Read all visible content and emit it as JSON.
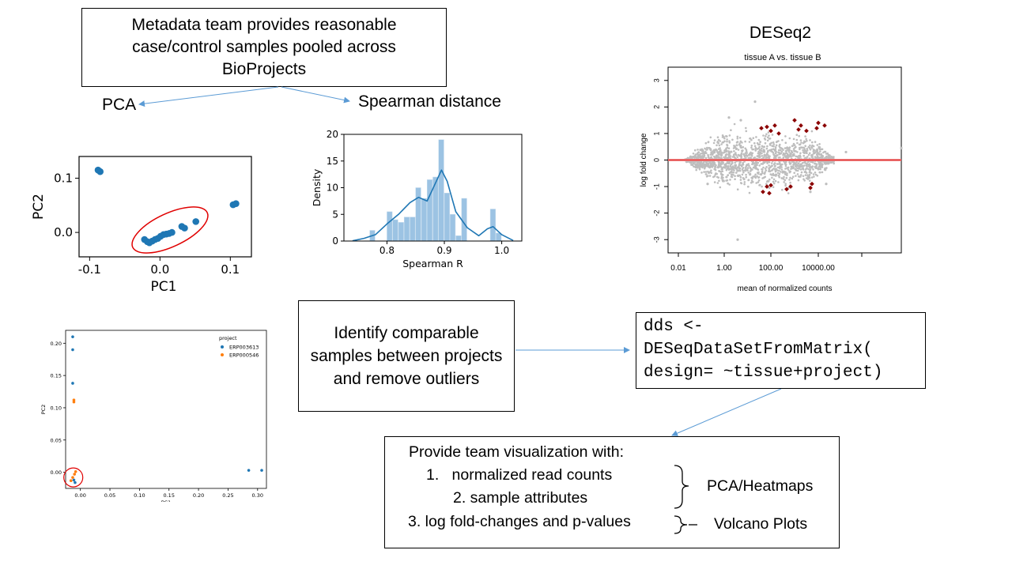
{
  "metadata_box": {
    "lines": [
      "Metadata team provides reasonable",
      "case/control samples pooled across",
      "BioProjects"
    ]
  },
  "pca_label": "PCA",
  "spearman_label": "Spearman distance",
  "deseq": {
    "title": "DESeq2",
    "subtitle": "tissue A vs. tissue B"
  },
  "identify_box": {
    "lines": [
      "Identify comparable",
      "samples between projects",
      "and remove outliers"
    ]
  },
  "code_box": {
    "lines": [
      "dds <-",
      "DESeqDataSetFromMatrix(",
      "design= ~tissue+project)"
    ]
  },
  "provide_box": {
    "title": "Provide team visualization with:",
    "item1": "1.   normalized read counts",
    "item2": "2. sample attributes",
    "item3": "3. log fold-changes and p-values",
    "label_pca": "PCA/Heatmaps",
    "label_volcano": "Volcano Plots"
  },
  "colors": {
    "blue": "#1f77b4",
    "orange": "#ff7f0e",
    "hist": "#9cc3e3",
    "red": "#d62728",
    "arrow": "#5b9bd5",
    "ma_grey": "#bdbdbd",
    "ma_sig": "#8b0000",
    "ma_line": "#f08080"
  },
  "chart_data": [
    {
      "type": "scatter",
      "xlabel": "PC1",
      "ylabel": "PC2",
      "xlim": [
        -0.115,
        0.13
      ],
      "ylim": [
        -0.045,
        0.14
      ],
      "xticks": [
        "-0.1",
        "0.0",
        "0.1"
      ],
      "yticks": [
        "0.0",
        "0.1"
      ],
      "points": [
        {
          "x": -0.088,
          "y": 0.115
        },
        {
          "x": -0.085,
          "y": 0.112
        },
        {
          "x": -0.022,
          "y": -0.013
        },
        {
          "x": -0.018,
          "y": -0.017
        },
        {
          "x": -0.015,
          "y": -0.019
        },
        {
          "x": -0.011,
          "y": -0.016
        },
        {
          "x": -0.007,
          "y": -0.013
        },
        {
          "x": -0.003,
          "y": -0.011
        },
        {
          "x": 0.001,
          "y": -0.007
        },
        {
          "x": 0.005,
          "y": -0.004
        },
        {
          "x": 0.009,
          "y": -0.003
        },
        {
          "x": 0.013,
          "y": -0.002
        },
        {
          "x": 0.017,
          "y": 0.0
        },
        {
          "x": 0.031,
          "y": 0.011
        },
        {
          "x": 0.035,
          "y": 0.008
        },
        {
          "x": 0.051,
          "y": 0.02
        },
        {
          "x": 0.104,
          "y": 0.051
        },
        {
          "x": 0.108,
          "y": 0.053
        }
      ],
      "outlier_ring": true
    },
    {
      "type": "bar",
      "subtype": "histogram-with-kde",
      "xlabel": "Spearman R",
      "ylabel": "Density",
      "xlim": [
        0.725,
        1.035
      ],
      "ylim": [
        0,
        20
      ],
      "xticks": [
        "0.8",
        "0.9",
        "1.0"
      ],
      "yticks": [
        "0",
        "5",
        "10",
        "15",
        "20"
      ],
      "bin_width": 0.01,
      "bins": [
        {
          "x": 0.77,
          "y": 2
        },
        {
          "x": 0.8,
          "y": 5.5
        },
        {
          "x": 0.81,
          "y": 4
        },
        {
          "x": 0.82,
          "y": 3.5
        },
        {
          "x": 0.83,
          "y": 4.5
        },
        {
          "x": 0.84,
          "y": 4.5
        },
        {
          "x": 0.85,
          "y": 10
        },
        {
          "x": 0.86,
          "y": 8
        },
        {
          "x": 0.87,
          "y": 11.5
        },
        {
          "x": 0.88,
          "y": 12
        },
        {
          "x": 0.89,
          "y": 19
        },
        {
          "x": 0.9,
          "y": 9
        },
        {
          "x": 0.91,
          "y": 5
        },
        {
          "x": 0.92,
          "y": 1
        },
        {
          "x": 0.93,
          "y": 8
        },
        {
          "x": 0.98,
          "y": 6
        },
        {
          "x": 0.99,
          "y": 1.5
        }
      ],
      "kde": [
        [
          0.74,
          0.05
        ],
        [
          0.76,
          0.5
        ],
        [
          0.78,
          1.2
        ],
        [
          0.8,
          3.2
        ],
        [
          0.82,
          5
        ],
        [
          0.84,
          7.2
        ],
        [
          0.855,
          8.2
        ],
        [
          0.87,
          7.5
        ],
        [
          0.88,
          9.8
        ],
        [
          0.895,
          13.3
        ],
        [
          0.905,
          11.2
        ],
        [
          0.92,
          5.5
        ],
        [
          0.94,
          2.5
        ],
        [
          0.96,
          1.0
        ],
        [
          0.975,
          2.3
        ],
        [
          0.985,
          2.7
        ],
        [
          1.0,
          1.2
        ],
        [
          1.02,
          0.1
        ]
      ]
    },
    {
      "type": "scatter",
      "subtype": "ma-plot",
      "xlabel": "mean of normalized counts",
      "ylabel": "log fold change",
      "xscale": "log",
      "ylim": [
        -3.5,
        3.5
      ],
      "xticks": [
        "0.01",
        "1.00",
        "100.00",
        "10000.00"
      ],
      "yticks": [
        "-3",
        "-2",
        "-1",
        "0",
        "1",
        "2",
        "3"
      ]
    },
    {
      "type": "scatter",
      "xlabel": "PC1",
      "ylabel": "PC2",
      "xlim": [
        -0.025,
        0.315
      ],
      "ylim": [
        -0.025,
        0.22
      ],
      "xticks": [
        "0.00",
        "0.05",
        "0.10",
        "0.15",
        "0.20",
        "0.25",
        "0.30"
      ],
      "yticks": [
        "0.00",
        "0.05",
        "0.10",
        "0.15",
        "0.20"
      ],
      "legend_title": "project",
      "legend_position": "top-right",
      "series": [
        {
          "name": "ERP003613",
          "points": [
            {
              "x": -0.013,
              "y": 0.21
            },
            {
              "x": -0.013,
              "y": 0.19
            },
            {
              "x": -0.013,
              "y": 0.138
            },
            {
              "x": -0.011,
              "y": -0.012
            },
            {
              "x": -0.009,
              "y": -0.016
            },
            {
              "x": 0.285,
              "y": 0.003
            },
            {
              "x": 0.307,
              "y": 0.003
            }
          ]
        },
        {
          "name": "ERP000546",
          "points": [
            {
              "x": -0.011,
              "y": 0.112
            },
            {
              "x": -0.011,
              "y": 0.109
            },
            {
              "x": -0.016,
              "y": -0.013
            },
            {
              "x": -0.013,
              "y": -0.008
            },
            {
              "x": -0.01,
              "y": -0.003
            },
            {
              "x": -0.008,
              "y": 0.001
            }
          ]
        }
      ],
      "outlier_ring": true
    }
  ]
}
